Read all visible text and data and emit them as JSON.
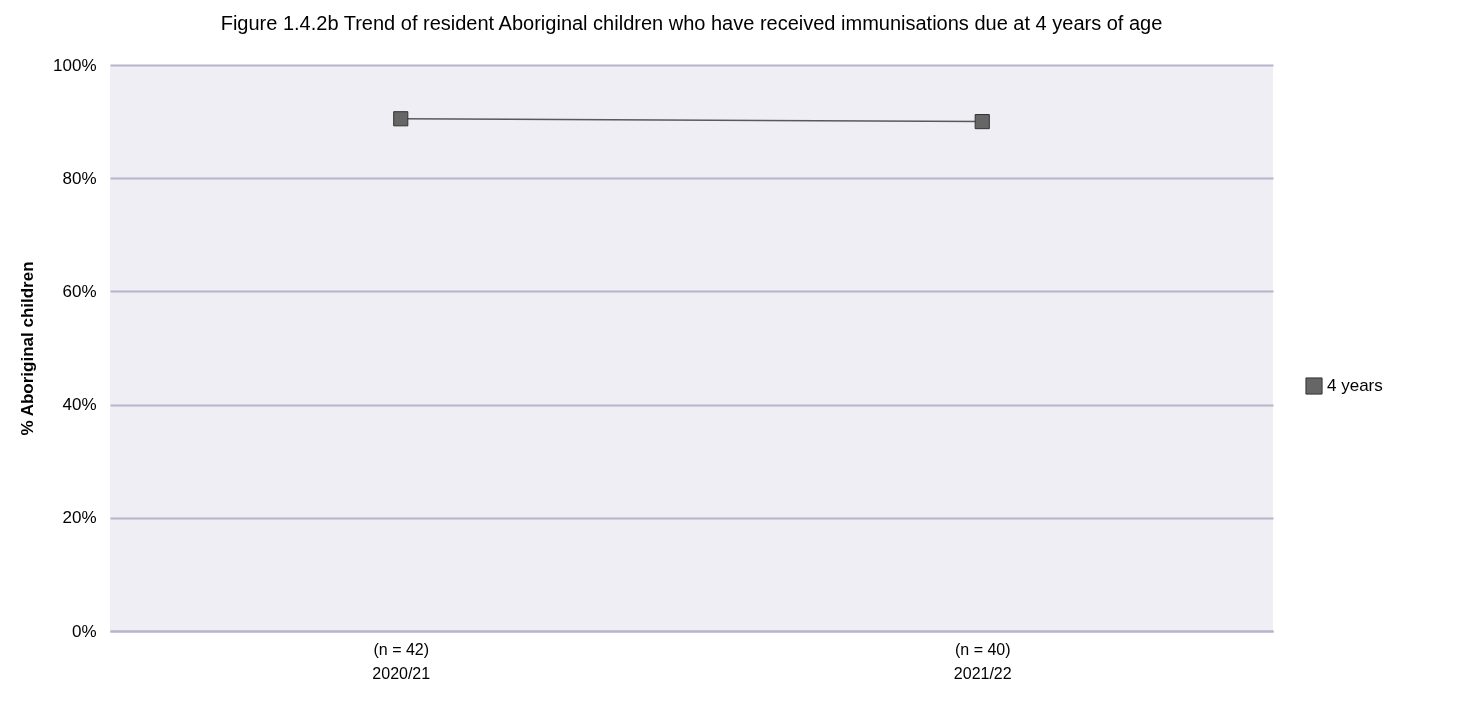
{
  "chart_data": {
    "type": "line",
    "title": "Figure 1.4.2b Trend of resident Aboriginal children who have received immunisations due at 4 years of age",
    "ylabel": "% Aboriginal children",
    "categories": [
      "(n = 42)\n2020/21",
      "(n = 40)\n2021/22"
    ],
    "series": [
      {
        "name": "4 years",
        "color": "#666666",
        "values": [
          90.5,
          90.0
        ]
      }
    ],
    "ylim": [
      0,
      100
    ],
    "yticks": [
      {
        "value": 0,
        "label": "0%"
      },
      {
        "value": 20,
        "label": "20%"
      },
      {
        "value": 40,
        "label": "40%"
      },
      {
        "value": 60,
        "label": "60%"
      },
      {
        "value": 80,
        "label": "80%"
      },
      {
        "value": 100,
        "label": "100%"
      }
    ],
    "grid": "y",
    "legend": "right",
    "marker": "square",
    "line_style": "solid"
  }
}
